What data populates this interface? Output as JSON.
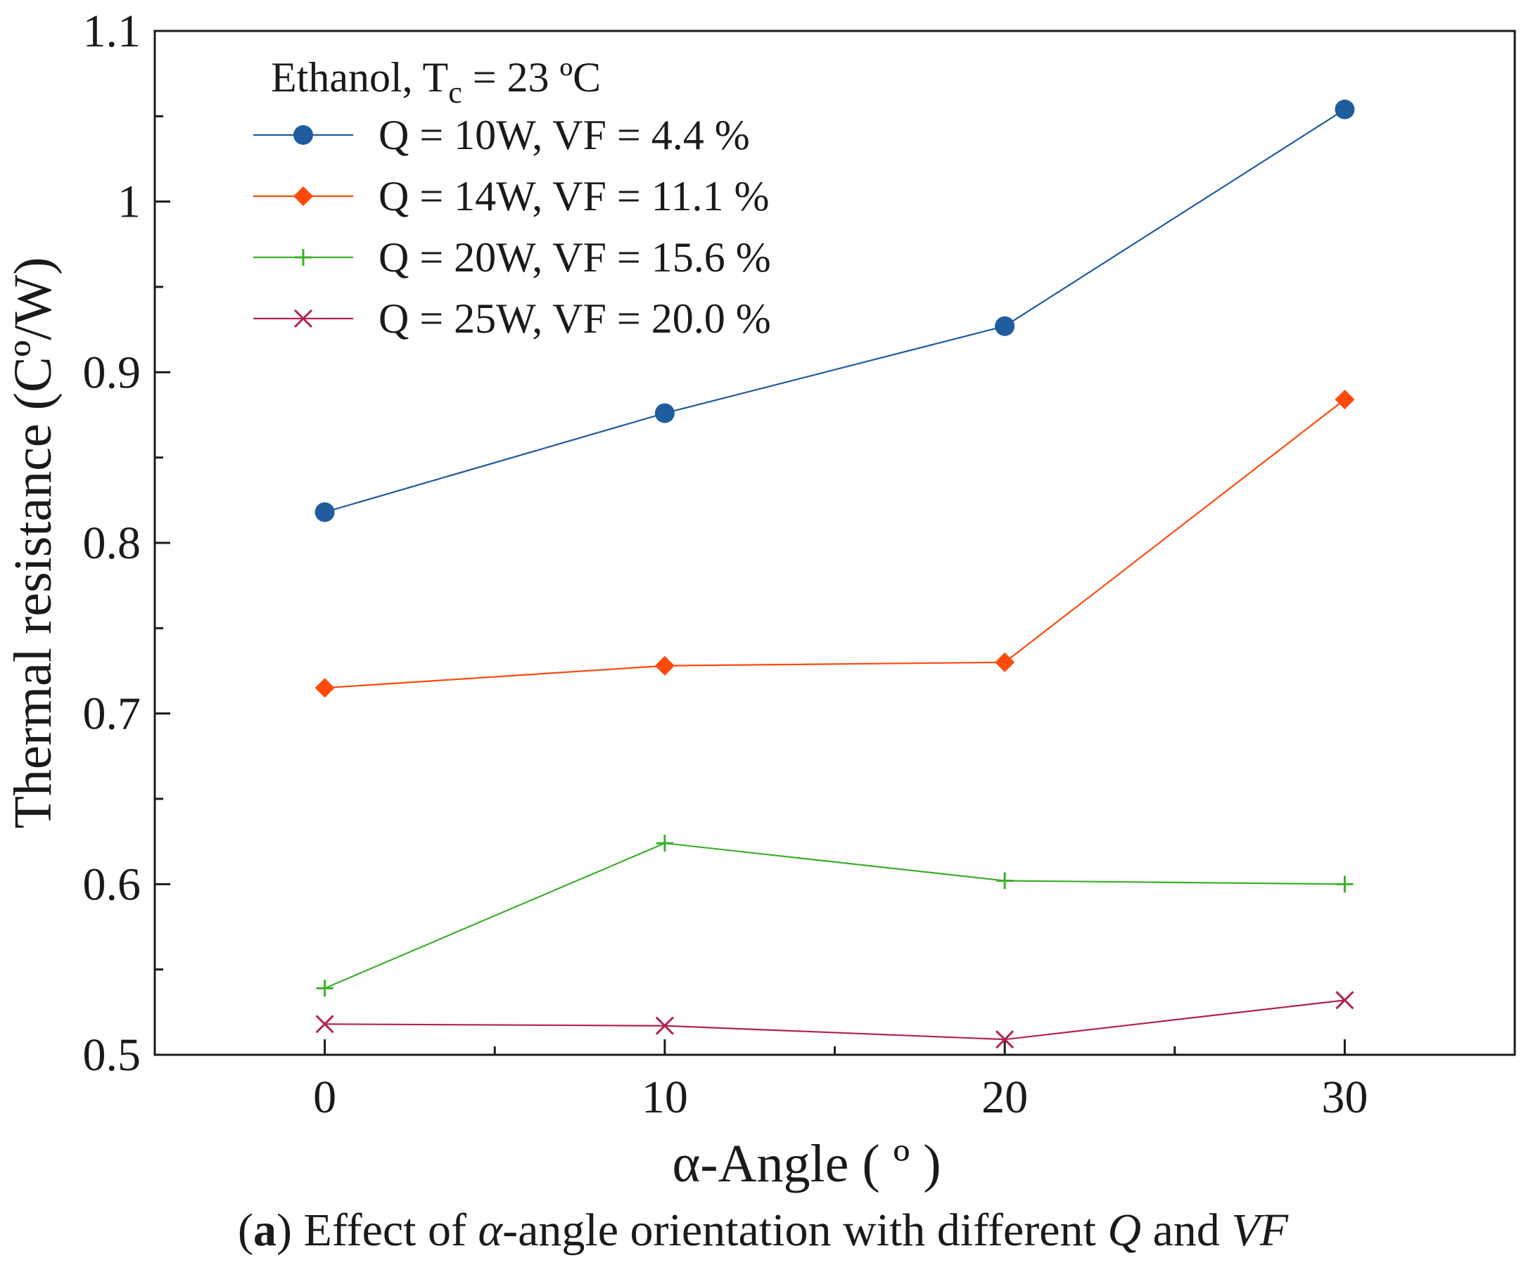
{
  "chart_data": {
    "type": "line",
    "xlabel": "α-Angle ( º )",
    "ylabel": "Thermal resistance (Cº/W)",
    "xlim": [
      -5,
      35
    ],
    "ylim": [
      0.5,
      1.1
    ],
    "x_ticks": [
      0,
      10,
      20,
      30
    ],
    "x_minor_ticks": [
      5,
      15,
      25
    ],
    "y_ticks": [
      0.5,
      0.6,
      0.7,
      0.8,
      0.9,
      1.0,
      1.1
    ],
    "y_tick_labels": [
      "0.5",
      "0.6",
      "0.7",
      "0.8",
      "0.9",
      "1",
      "1.1"
    ],
    "y_minor_ticks": [
      0.55,
      0.65,
      0.75,
      0.85,
      0.95,
      1.05
    ],
    "grid": false,
    "legend_position": "top-left",
    "legend_title": "Ethanol, T",
    "legend_title_sub": "c",
    "legend_title_rest": " = 23 ºC",
    "x": [
      0,
      10,
      20,
      30
    ],
    "series": [
      {
        "name": "Q = 10W, VF = 4.4 %",
        "values": [
          0.818,
          0.876,
          0.927,
          1.054
        ],
        "color": "#1f5d9e",
        "marker": "circle"
      },
      {
        "name": "Q = 14W, VF = 11.1 %",
        "values": [
          0.715,
          0.728,
          0.73,
          0.884
        ],
        "color": "#ff4a0d",
        "marker": "diamond"
      },
      {
        "name": "Q = 20W, VF = 15.6 %",
        "values": [
          0.539,
          0.624,
          0.602,
          0.6
        ],
        "color": "#3bb02a",
        "marker": "plus"
      },
      {
        "name": "Q = 25W, VF = 20.0 %",
        "values": [
          0.518,
          0.517,
          0.509,
          0.532
        ],
        "color": "#b0244e",
        "marker": "x"
      }
    ]
  },
  "caption": {
    "label": "a",
    "text_1": " Effect of ",
    "alpha": "α",
    "text_2": "-angle orientation with different ",
    "q": "Q",
    "text_3": " and ",
    "vf": "VF"
  }
}
